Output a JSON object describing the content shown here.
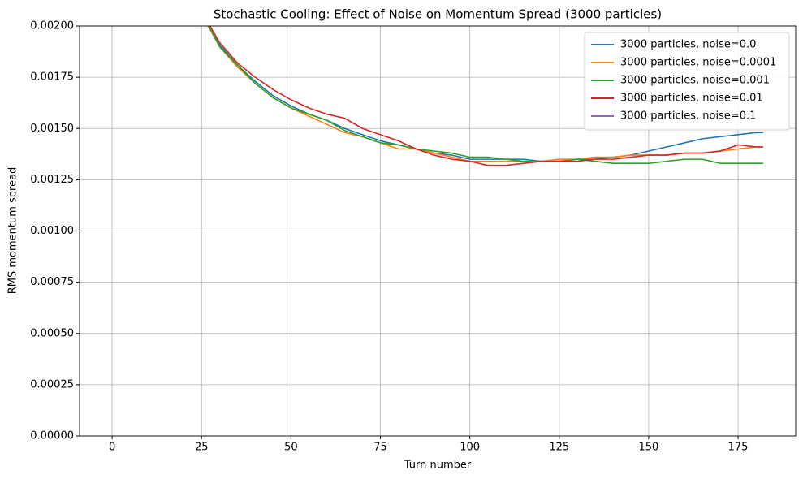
{
  "chart_data": {
    "type": "line",
    "title": "Stochastic Cooling: Effect of Noise on Momentum Spread (3000 particles)",
    "x_label": "Turn number",
    "y_label": "RMS momentum spread",
    "x": [
      25,
      30,
      35,
      40,
      45,
      50,
      55,
      60,
      65,
      70,
      75,
      80,
      85,
      90,
      95,
      100,
      105,
      110,
      115,
      120,
      125,
      130,
      135,
      140,
      145,
      150,
      155,
      160,
      165,
      170,
      175,
      180,
      182
    ],
    "series": [
      {
        "name": "3000 particles, noise=0.0",
        "color": "#1f77b4",
        "values": [
          0.00205,
          0.00191,
          0.00181,
          0.00173,
          0.00166,
          0.00161,
          0.00157,
          0.00154,
          0.0015,
          0.00147,
          0.00144,
          0.00142,
          0.0014,
          0.00138,
          0.00137,
          0.00135,
          0.00135,
          0.00135,
          0.00135,
          0.00134,
          0.00134,
          0.00135,
          0.00135,
          0.00136,
          0.00137,
          0.00139,
          0.00141,
          0.00143,
          0.00145,
          0.00146,
          0.00147,
          0.00148,
          0.00148
        ]
      },
      {
        "name": "3000 particles, noise=0.0001",
        "color": "#ff7f0e",
        "values": [
          0.00206,
          0.0019,
          0.0018,
          0.00172,
          0.00165,
          0.0016,
          0.00156,
          0.00152,
          0.00148,
          0.00146,
          0.00143,
          0.0014,
          0.0014,
          0.00138,
          0.00136,
          0.00134,
          0.00134,
          0.00134,
          0.00134,
          0.00134,
          0.00135,
          0.00135,
          0.00136,
          0.00136,
          0.00137,
          0.00137,
          0.00137,
          0.00138,
          0.00138,
          0.00139,
          0.0014,
          0.00141,
          0.00141
        ]
      },
      {
        "name": "3000 particles, noise=0.001",
        "color": "#2ca02c",
        "values": [
          0.00207,
          0.0019,
          0.00181,
          0.00172,
          0.00165,
          0.0016,
          0.00157,
          0.00154,
          0.00149,
          0.00146,
          0.00143,
          0.00142,
          0.0014,
          0.00139,
          0.00138,
          0.00136,
          0.00136,
          0.00135,
          0.00134,
          0.00134,
          0.00134,
          0.00135,
          0.00134,
          0.00133,
          0.00133,
          0.00133,
          0.00134,
          0.00135,
          0.00135,
          0.00133,
          0.00133,
          0.00133,
          0.00133
        ]
      },
      {
        "name": "3000 particles, noise=0.01",
        "color": "#d62728",
        "values": [
          0.00207,
          0.00192,
          0.00182,
          0.00175,
          0.00169,
          0.00164,
          0.0016,
          0.00157,
          0.00155,
          0.0015,
          0.00147,
          0.00144,
          0.0014,
          0.00137,
          0.00135,
          0.00134,
          0.00132,
          0.00132,
          0.00133,
          0.00134,
          0.00134,
          0.00134,
          0.00135,
          0.00135,
          0.00136,
          0.00137,
          0.00137,
          0.00138,
          0.00138,
          0.00139,
          0.00142,
          0.00141,
          0.00141
        ]
      },
      {
        "name": "3000 particles, noise=0.1",
        "color": "#9467bd",
        "values": [
          null,
          null,
          null,
          null,
          null,
          null,
          null,
          null,
          null,
          null,
          null,
          null,
          null,
          null,
          null,
          null,
          null,
          null,
          null,
          null,
          null,
          null,
          null,
          null,
          null,
          null,
          null,
          null,
          null,
          null,
          null,
          null,
          null
        ]
      }
    ],
    "xlim": [
      -9.1,
      191.1
    ],
    "xticks": [
      0,
      25,
      50,
      75,
      100,
      125,
      150,
      175
    ],
    "ylim": [
      0,
      0.002
    ],
    "yticks": [
      {
        "value": 0,
        "label": "0.00000"
      },
      {
        "value": 0.00025,
        "label": "0.00025"
      },
      {
        "value": 0.0005,
        "label": "0.00050"
      },
      {
        "value": 0.00075,
        "label": "0.00075"
      },
      {
        "value": 0.001,
        "label": "0.00100"
      },
      {
        "value": 0.00125,
        "label": "0.00125"
      },
      {
        "value": 0.0015,
        "label": "0.00150"
      },
      {
        "value": 0.00175,
        "label": "0.00175"
      },
      {
        "value": 0.002,
        "label": "0.00200"
      }
    ],
    "grid": true,
    "legend": "upper right"
  }
}
